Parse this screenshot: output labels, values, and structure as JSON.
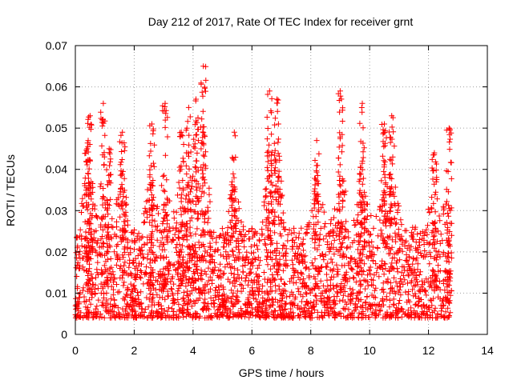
{
  "chart_data": {
    "type": "scatter",
    "title": "Day 212 of 2017, Rate Of TEC Index for receiver grnt",
    "xlabel": "GPS time / hours",
    "ylabel": "ROTI / TECUs",
    "xlim": [
      0,
      14
    ],
    "ylim": [
      0,
      0.07
    ],
    "x_ticks": [
      0,
      2,
      4,
      6,
      8,
      10,
      12,
      14
    ],
    "x_tick_labels": [
      "0",
      "2",
      "4",
      "6",
      "8",
      "10",
      "12",
      "14"
    ],
    "y_ticks": [
      0,
      0.01,
      0.02,
      0.03,
      0.04,
      0.05,
      0.06,
      0.07
    ],
    "y_tick_labels": [
      "0",
      "0.01",
      "0.02",
      "0.03",
      "0.04",
      "0.05",
      "0.06",
      "0.07"
    ],
    "grid": true,
    "marker": "plus",
    "color": "#ff0000",
    "series": [
      {
        "name": "ROTI",
        "data_extent_hours": [
          0,
          12.75
        ],
        "sampling_note": "approximate reconstruction of dense scatter; baseline ~0.005-0.03 with peaks",
        "peaks": [
          {
            "x": 0.4,
            "y": 0.045
          },
          {
            "x": 0.5,
            "y": 0.053
          },
          {
            "x": 0.95,
            "y": 0.056
          },
          {
            "x": 1.15,
            "y": 0.045
          },
          {
            "x": 1.6,
            "y": 0.049
          },
          {
            "x": 2.6,
            "y": 0.051
          },
          {
            "x": 3.05,
            "y": 0.056
          },
          {
            "x": 3.6,
            "y": 0.049
          },
          {
            "x": 3.85,
            "y": 0.055
          },
          {
            "x": 4.1,
            "y": 0.057
          },
          {
            "x": 4.35,
            "y": 0.065
          },
          {
            "x": 5.4,
            "y": 0.049
          },
          {
            "x": 6.6,
            "y": 0.059
          },
          {
            "x": 6.85,
            "y": 0.057
          },
          {
            "x": 8.2,
            "y": 0.047
          },
          {
            "x": 9.0,
            "y": 0.059
          },
          {
            "x": 9.75,
            "y": 0.056
          },
          {
            "x": 10.5,
            "y": 0.051
          },
          {
            "x": 10.75,
            "y": 0.053
          },
          {
            "x": 12.2,
            "y": 0.044
          },
          {
            "x": 12.7,
            "y": 0.05
          }
        ]
      }
    ]
  }
}
